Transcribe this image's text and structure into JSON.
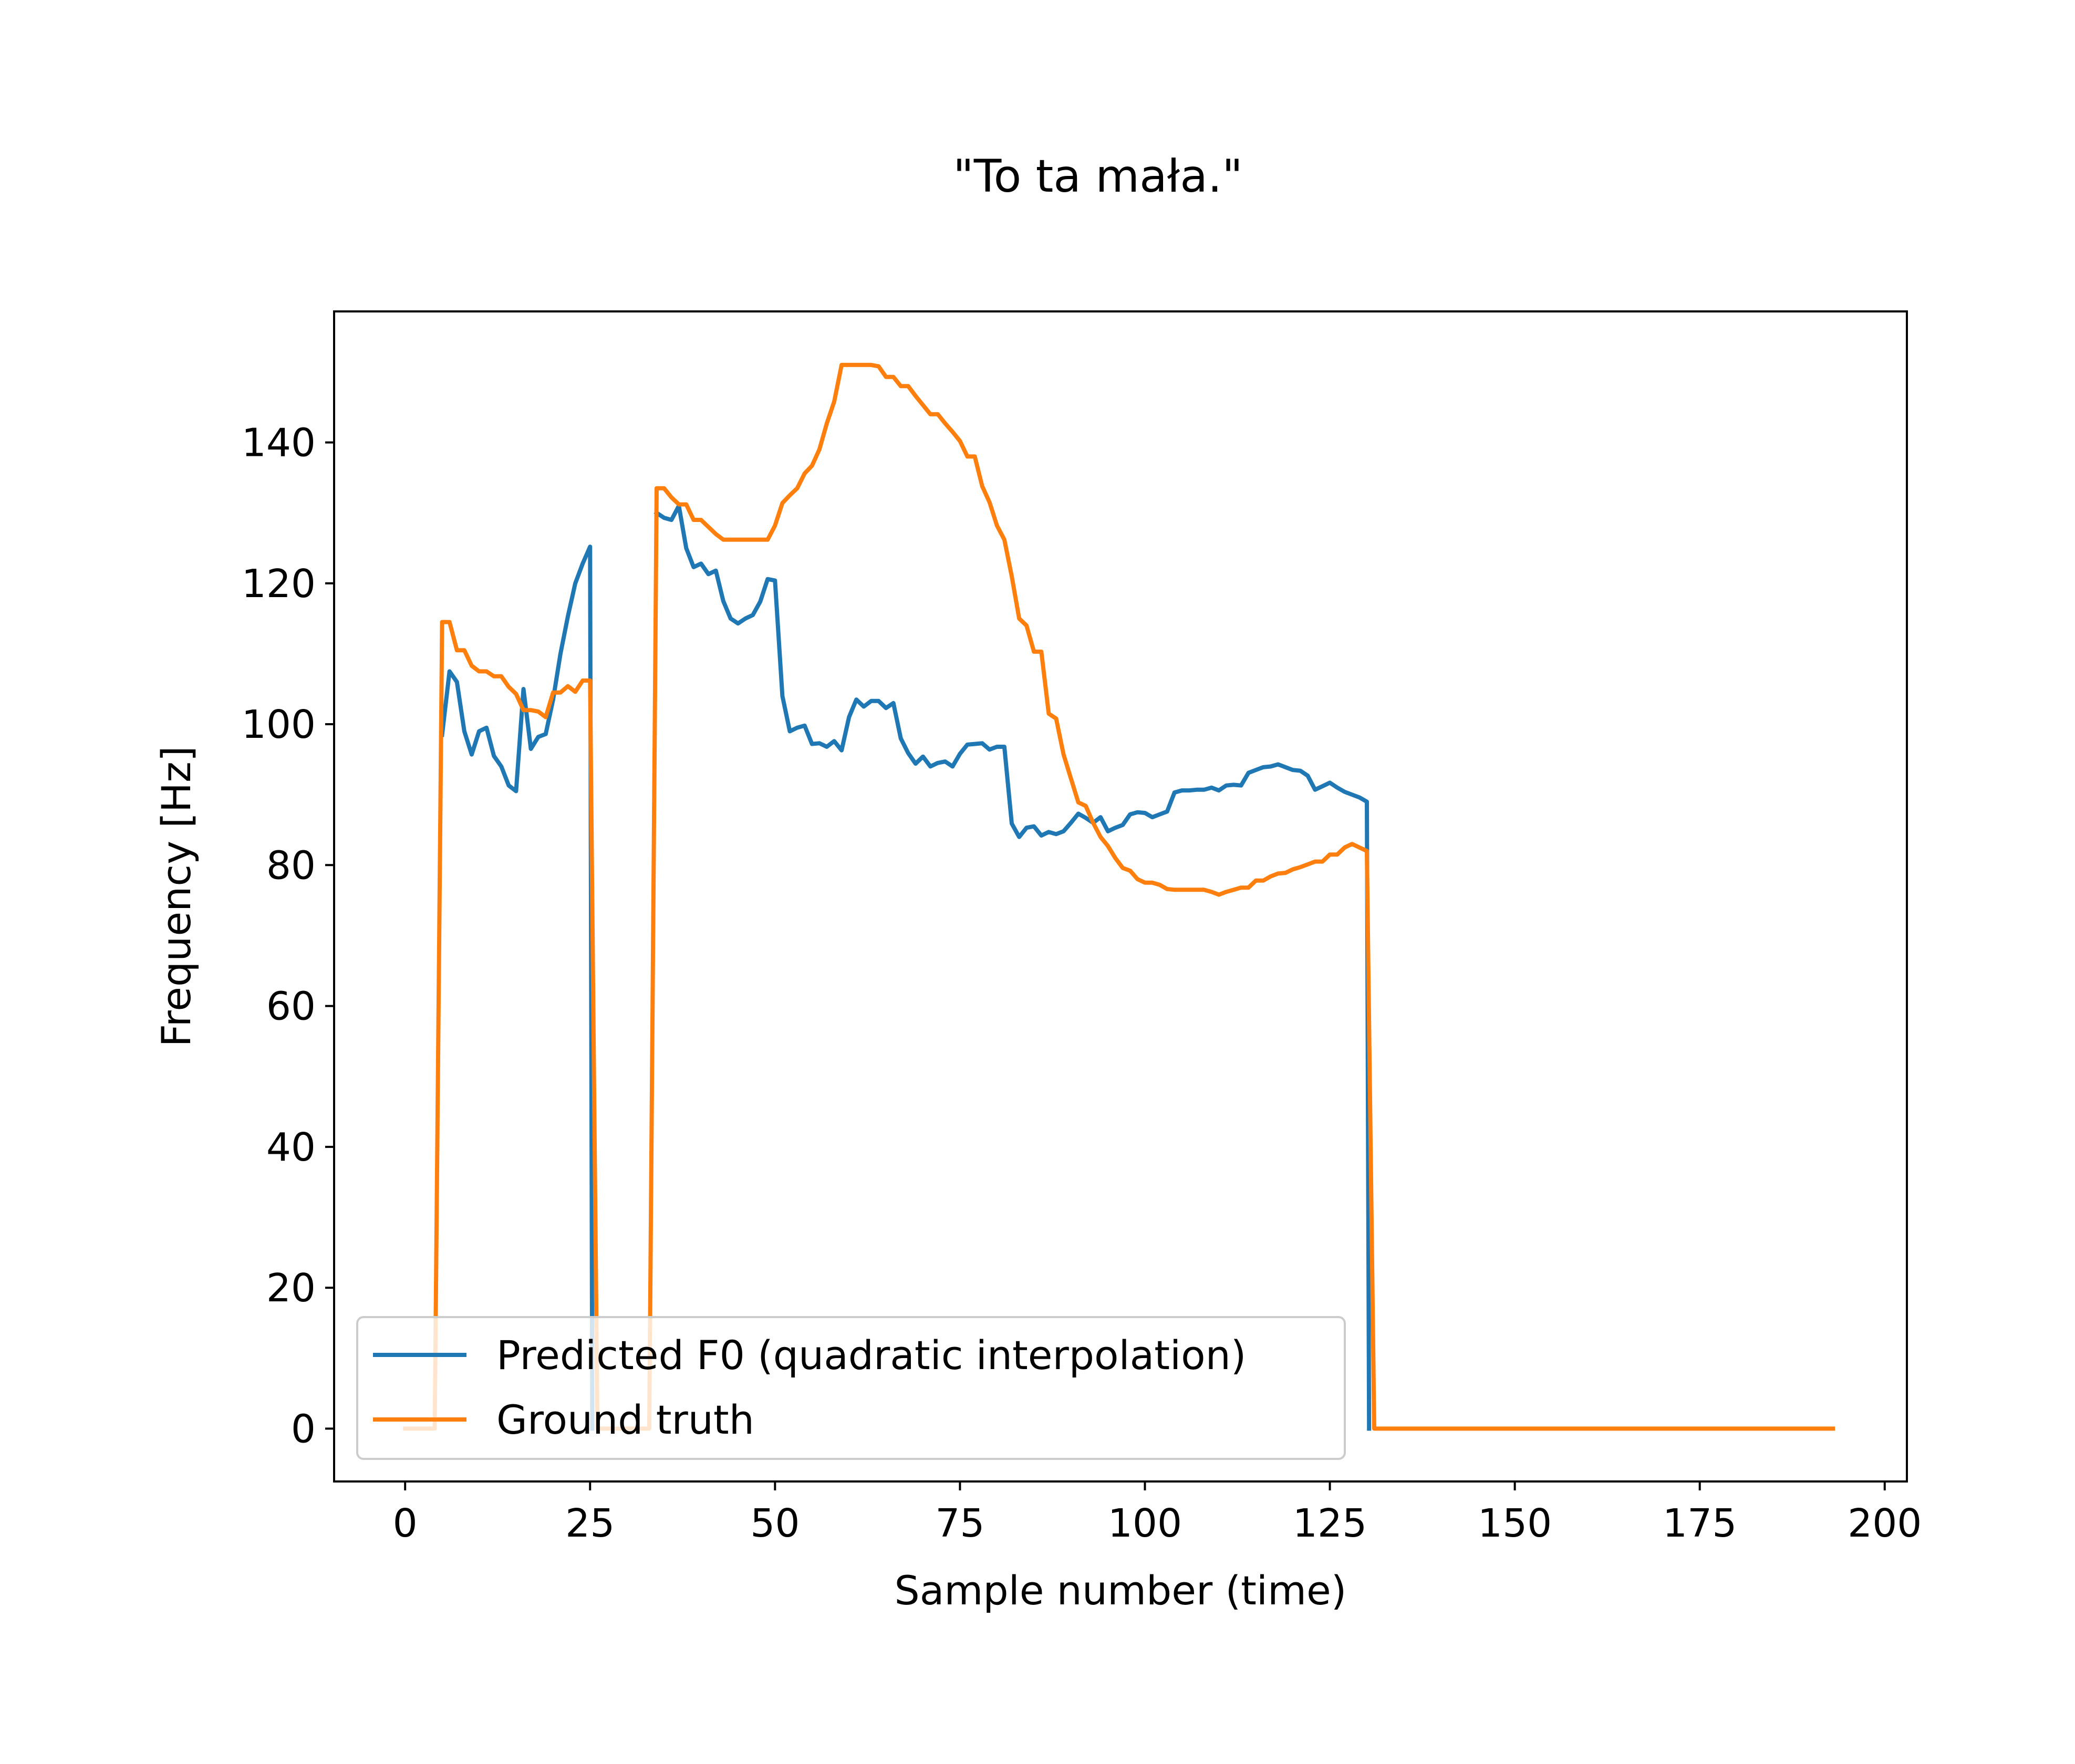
{
  "chart_data": {
    "type": "line",
    "title": "\"To ta mała.\"",
    "xlabel": "Sample number (time)",
    "ylabel": "Frequency [Hz]",
    "xlim": [
      -9.6,
      203.0
    ],
    "ylim": [
      -7.5,
      158.6
    ],
    "xticks": [
      0,
      25,
      50,
      75,
      100,
      125,
      150,
      175,
      200
    ],
    "yticks": [
      0,
      20,
      40,
      60,
      80,
      100,
      120,
      140
    ],
    "grid": false,
    "legend_position": "lower-left",
    "series": [
      {
        "name": "Predicted F0 (quadratic interpolation)",
        "color": "#1f77b4",
        "segments": [
          {
            "x": [
              5,
              6,
              7,
              8,
              9,
              10,
              11,
              12,
              13,
              14,
              15,
              16,
              17,
              18,
              19,
              20,
              21,
              22,
              23,
              24,
              25,
              25.3
            ],
            "y": [
              98.5,
              107.5,
              106,
              99,
              95.7,
              99,
              99.5,
              95.5,
              94,
              91.3,
              90.5,
              105,
              96.5,
              98.2,
              98.6,
              103.5,
              110,
              115.3,
              120,
              122.8,
              125.2,
              0
            ]
          },
          {
            "x": [
              34,
              35,
              36,
              37,
              38,
              39,
              40,
              41,
              42,
              43,
              44,
              45,
              46,
              47,
              48,
              49,
              50,
              51,
              52,
              53,
              54,
              55,
              56,
              57,
              58,
              59,
              60,
              61,
              62,
              63,
              64,
              65,
              66,
              67,
              68,
              69,
              70,
              71,
              72,
              73,
              74,
              75,
              76,
              77,
              78,
              79,
              80,
              81,
              82,
              83,
              84,
              85,
              86,
              87,
              88,
              89,
              90,
              91,
              92,
              93,
              94,
              95,
              96,
              97,
              98,
              99,
              100,
              101,
              102,
              103,
              104,
              105,
              106,
              107,
              108,
              109,
              110,
              111,
              112,
              113,
              114,
              115,
              116,
              117,
              118,
              119,
              120,
              121,
              122,
              123,
              124,
              125,
              126,
              127,
              128,
              129,
              130,
              130.3
            ],
            "y": [
              130,
              129.3,
              129,
              131,
              125,
              122.3,
              122.8,
              121.3,
              121.8,
              117.5,
              115,
              114.3,
              115,
              115.5,
              117.4,
              120.6,
              120.4,
              104,
              99,
              99.5,
              99.8,
              97.2,
              97.3,
              96.8,
              97.6,
              96.3,
              101,
              103.5,
              102.5,
              103.3,
              103.3,
              102.3,
              103,
              98,
              95.9,
              94.4,
              95.4,
              94,
              94.5,
              94.7,
              94,
              95.8,
              97.1,
              97.2,
              97.3,
              96.4,
              96.8,
              96.8,
              85.9,
              84,
              85.3,
              85.5,
              84.2,
              84.7,
              84.4,
              84.8,
              86,
              87.3,
              86.7,
              86,
              86.8,
              84.8,
              85.3,
              85.7,
              87.2,
              87.5,
              87.4,
              86.8,
              87.2,
              87.6,
              90.3,
              90.6,
              90.6,
              90.7,
              90.7,
              91,
              90.6,
              91.3,
              91.4,
              91.3,
              93.1,
              93.5,
              93.9,
              94,
              94.3,
              93.9,
              93.5,
              93.4,
              92.7,
              90.7,
              91.2,
              91.7,
              91,
              90.4,
              90,
              89.6,
              89,
              0
            ]
          }
        ]
      },
      {
        "name": "Ground truth",
        "color": "#ff7f0e",
        "segments": [
          {
            "x": [
              0,
              1,
              2,
              3,
              4,
              5,
              6,
              7,
              8,
              9,
              10,
              11,
              12,
              13,
              14,
              15,
              16,
              17,
              18,
              19,
              20,
              21,
              22,
              23,
              24,
              25,
              26,
              27,
              28,
              29,
              30,
              31,
              32,
              33,
              34,
              35,
              36,
              37,
              38,
              39,
              40,
              41,
              42,
              43,
              44,
              45,
              46,
              47,
              48,
              49,
              50,
              51,
              52,
              53,
              54,
              55,
              56,
              57,
              58,
              59,
              60,
              61,
              62,
              63,
              64,
              65,
              66,
              67,
              68,
              69,
              70,
              71,
              72,
              73,
              74,
              75,
              76,
              77,
              78,
              79,
              80,
              81,
              82,
              83,
              84,
              85,
              86,
              87,
              88,
              89,
              90,
              91,
              92,
              93,
              94,
              95,
              96,
              97,
              98,
              99,
              100,
              101,
              102,
              103,
              104,
              105,
              106,
              107,
              108,
              109,
              110,
              111,
              112,
              113,
              114,
              115,
              116,
              117,
              118,
              119,
              120,
              121,
              122,
              123,
              124,
              125,
              126,
              127,
              128,
              129,
              130,
              131,
              193
            ],
            "y": [
              0,
              0,
              0,
              0,
              0,
              114.5,
              114.5,
              110.5,
              110.5,
              108.3,
              107.5,
              107.5,
              106.8,
              106.8,
              105.3,
              104.3,
              102,
              102,
              101.8,
              101,
              104.5,
              104.5,
              105.4,
              104.6,
              106.2,
              106.2,
              0,
              0,
              0,
              0,
              0,
              0,
              0,
              0,
              133.5,
              133.5,
              132.2,
              131.2,
              131.2,
              129,
              129,
              128,
              127,
              126.2,
              126.2,
              126.2,
              126.2,
              126.2,
              126.2,
              126.2,
              128.2,
              131.4,
              132.5,
              133.5,
              135.6,
              136.7,
              139,
              142.7,
              145.8,
              151,
              151,
              151,
              151,
              151,
              150.8,
              149.3,
              149.3,
              148,
              148,
              146.6,
              145.3,
              144,
              144,
              142.7,
              141.5,
              140.2,
              138,
              138,
              133.8,
              131.5,
              128.2,
              126.2,
              121,
              115,
              114,
              110.3,
              110.3,
              101.5,
              100.8,
              95.7,
              92.3,
              88.9,
              88.4,
              86,
              84,
              82.7,
              81,
              79.6,
              79.2,
              78,
              77.5,
              77.5,
              77.2,
              76.6,
              76.5,
              76.5,
              76.5,
              76.5,
              76.5,
              76.2,
              75.8,
              76.2,
              76.5,
              76.8,
              76.8,
              77.8,
              77.8,
              78.4,
              78.8,
              78.9,
              79.4,
              79.7,
              80.1,
              80.5,
              80.5,
              81.5,
              81.5,
              82.5,
              83,
              82.5,
              82,
              0,
              0
            ]
          }
        ]
      }
    ]
  }
}
